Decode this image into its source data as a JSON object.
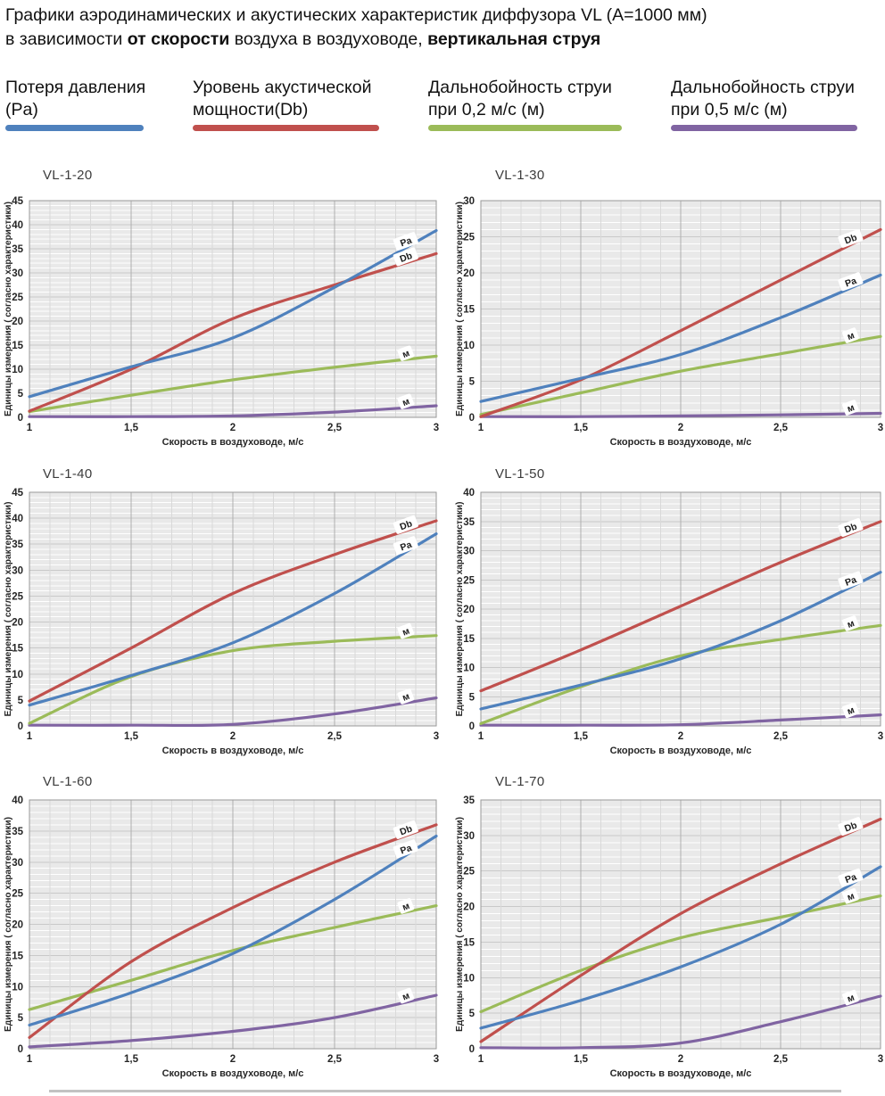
{
  "page": {
    "title_line1": "Графики аэродинамических и акустических характеристик  диффузора VL (A=1000 мм)",
    "title_line2_prefix": "в зависимости ",
    "title_line2_bold1": "от скорости",
    "title_line2_mid": " воздуха в воздуховоде, ",
    "title_line2_bold2": "вертикальная струя"
  },
  "colors": {
    "pa": "#4F81BD",
    "db": "#C0504D",
    "m02": "#9BBB59",
    "m05": "#8064A2"
  },
  "legend": [
    {
      "label_line1": "Потеря давления",
      "label_line2": "(Pa)",
      "color": "#4F81BD"
    },
    {
      "label_line1": "Уровень акустической",
      "label_line2": "мощности(Db)",
      "color": "#C0504D"
    },
    {
      "label_line1": "Дальнобойность струи",
      "label_line2": "при 0,2 м/с (м)",
      "color": "#9BBB59"
    },
    {
      "label_line1": "Дальнобойность струи",
      "label_line2": "при 0,5 м/с (м)",
      "color": "#8064A2"
    }
  ],
  "axes": {
    "x_title": "Скорость в воздуховоде, м/с",
    "y_title": "Единицы измерения ( согласно характеристики)",
    "x_values": [
      1,
      1.5,
      2,
      2.5,
      3
    ],
    "x_tick_labels": [
      "1",
      "1,5",
      "2",
      "2,5",
      "3"
    ],
    "x_range": [
      1,
      3
    ]
  },
  "chart_data": [
    {
      "type": "line",
      "title": "VL-1-20",
      "ylim": [
        0,
        45
      ],
      "ytick_step": 5,
      "x": [
        1,
        1.5,
        2,
        2.5,
        3
      ],
      "series": [
        {
          "name": "Потеря давления (Pa)",
          "key": "pa",
          "color": "#4F81BD",
          "label": "Pa",
          "values": [
            4.3,
            10.5,
            16.5,
            27,
            38.8
          ]
        },
        {
          "name": "Уровень акустической мощности (Db)",
          "key": "db",
          "color": "#C0504D",
          "label": "Db",
          "values": [
            1.3,
            10,
            20.5,
            27.5,
            34
          ]
        },
        {
          "name": "Дальнобойность струи при 0,2 м/с (м)",
          "key": "m02",
          "color": "#9BBB59",
          "label": "м",
          "values": [
            1.2,
            4.6,
            7.8,
            10.4,
            12.7
          ]
        },
        {
          "name": "Дальнобойность струи при 0,5 м/с (м)",
          "key": "m05",
          "color": "#8064A2",
          "label": "м",
          "values": [
            0.1,
            0.1,
            0.3,
            1.1,
            2.4
          ]
        }
      ]
    },
    {
      "type": "line",
      "title": "VL-1-30",
      "ylim": [
        0,
        30
      ],
      "ytick_step": 5,
      "x": [
        1,
        1.5,
        2,
        2.5,
        3
      ],
      "series": [
        {
          "name": "Потеря давления (Pa)",
          "key": "pa",
          "color": "#4F81BD",
          "label": "Pa",
          "values": [
            2.2,
            5.4,
            8.7,
            13.8,
            19.7
          ]
        },
        {
          "name": "Уровень акустической мощности (Db)",
          "key": "db",
          "color": "#C0504D",
          "label": "Db",
          "values": [
            0.1,
            5.2,
            12,
            19,
            26
          ]
        },
        {
          "name": "Дальнобойность струи при 0,2 м/с (м)",
          "key": "m02",
          "color": "#9BBB59",
          "label": "м",
          "values": [
            0.4,
            3.4,
            6.4,
            8.8,
            11.2
          ]
        },
        {
          "name": "Дальнобойность струи при 0,5 м/с (м)",
          "key": "m05",
          "color": "#8064A2",
          "label": "м",
          "values": [
            0.05,
            0.1,
            0.2,
            0.35,
            0.55
          ]
        }
      ]
    },
    {
      "type": "line",
      "title": "VL-1-40",
      "ylim": [
        0,
        45
      ],
      "ytick_step": 5,
      "x": [
        1,
        1.5,
        2,
        2.5,
        3
      ],
      "series": [
        {
          "name": "Потеря давления (Pa)",
          "key": "pa",
          "color": "#4F81BD",
          "label": "Pa",
          "values": [
            4,
            9.7,
            16,
            25.5,
            37
          ]
        },
        {
          "name": "Уровень акустической мощности (Db)",
          "key": "db",
          "color": "#C0504D",
          "label": "Db",
          "values": [
            4.8,
            15,
            25.5,
            33,
            39.5
          ]
        },
        {
          "name": "Дальнобойность струи при 0,2 м/с (м)",
          "key": "m02",
          "color": "#9BBB59",
          "label": "м",
          "values": [
            0.5,
            9.5,
            14.5,
            16.3,
            17.4
          ]
        },
        {
          "name": "Дальнобойность струи при 0,5 м/с (м)",
          "key": "m05",
          "color": "#8064A2",
          "label": "м",
          "values": [
            0.1,
            0.1,
            0.3,
            2.3,
            5.4
          ]
        }
      ]
    },
    {
      "type": "line",
      "title": "VL-1-50",
      "ylim": [
        0,
        40
      ],
      "ytick_step": 5,
      "x": [
        1,
        1.5,
        2,
        2.5,
        3
      ],
      "series": [
        {
          "name": "Потеря давления (Pa)",
          "key": "pa",
          "color": "#4F81BD",
          "label": "Pa",
          "values": [
            2.9,
            7,
            11.5,
            18,
            26.3
          ]
        },
        {
          "name": "Уровень акустической мощности (Db)",
          "key": "db",
          "color": "#C0504D",
          "label": "Db",
          "values": [
            6,
            13,
            20.5,
            28,
            35
          ]
        },
        {
          "name": "Дальнобойность струи при 0,2 м/с (м)",
          "key": "m02",
          "color": "#9BBB59",
          "label": "м",
          "values": [
            0.4,
            6.7,
            12,
            14.8,
            17.2
          ]
        },
        {
          "name": "Дальнобойность струи при 0,5 м/с (м)",
          "key": "m05",
          "color": "#8064A2",
          "label": "м",
          "values": [
            0.05,
            0.1,
            0.2,
            1,
            1.9
          ]
        }
      ]
    },
    {
      "type": "line",
      "title": "VL-1-60",
      "ylim": [
        0,
        40
      ],
      "ytick_step": 5,
      "x": [
        1,
        1.5,
        2,
        2.5,
        3
      ],
      "series": [
        {
          "name": "Потеря давления (Pa)",
          "key": "pa",
          "color": "#4F81BD",
          "label": "Pa",
          "values": [
            3.8,
            9,
            15.3,
            24,
            34.2
          ]
        },
        {
          "name": "Уровень акустической мощности (Db)",
          "key": "db",
          "color": "#C0504D",
          "label": "Db",
          "values": [
            1.8,
            14,
            22.7,
            30,
            36
          ]
        },
        {
          "name": "Дальнобойность струи при 0,2 м/с (м)",
          "key": "m02",
          "color": "#9BBB59",
          "label": "м",
          "values": [
            6.3,
            11,
            15.8,
            19.5,
            23
          ]
        },
        {
          "name": "Дальнобойность струи при 0,5 м/с (м)",
          "key": "m05",
          "color": "#8064A2",
          "label": "м",
          "values": [
            0.3,
            1.3,
            2.8,
            5,
            8.6
          ]
        }
      ]
    },
    {
      "type": "line",
      "title": "VL-1-70",
      "ylim": [
        0,
        35
      ],
      "ytick_step": 5,
      "x": [
        1,
        1.5,
        2,
        2.5,
        3
      ],
      "series": [
        {
          "name": "Потеря давления (Pa)",
          "key": "pa",
          "color": "#4F81BD",
          "label": "Pa",
          "values": [
            2.9,
            6.8,
            11.5,
            17.5,
            25.6
          ]
        },
        {
          "name": "Уровень акустической мощности (Db)",
          "key": "db",
          "color": "#C0504D",
          "label": "Db",
          "values": [
            1,
            10.3,
            19,
            26,
            32.3
          ]
        },
        {
          "name": "Дальнобойность струи при 0,2 м/с (м)",
          "key": "m02",
          "color": "#9BBB59",
          "label": "м",
          "values": [
            5.2,
            11,
            15.6,
            18.5,
            21.5
          ]
        },
        {
          "name": "Дальнобойность струи при 0,5 м/с (м)",
          "key": "m05",
          "color": "#8064A2",
          "label": "м",
          "values": [
            0.15,
            0.15,
            0.8,
            3.8,
            7.4
          ]
        }
      ]
    }
  ]
}
